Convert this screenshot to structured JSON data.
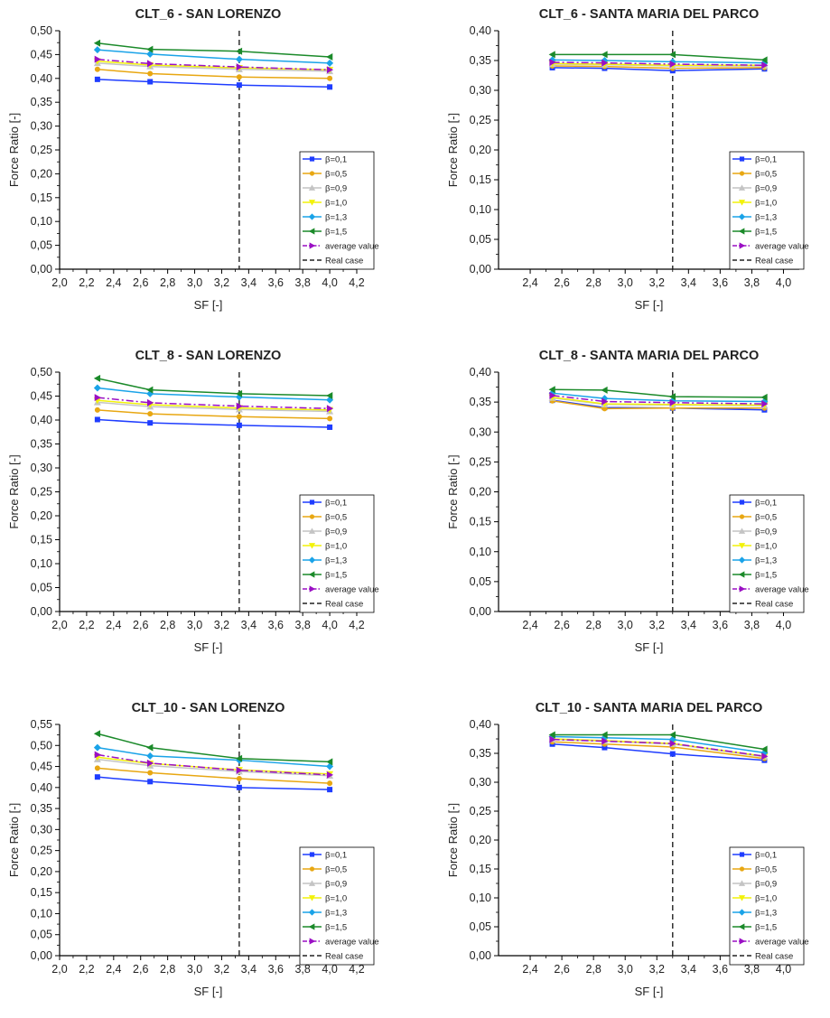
{
  "chart_data": [
    {
      "type": "line",
      "title": "CLT_6 - SAN LORENZO",
      "xlabel": "SF [-]",
      "ylabel": "Force Ratio [-]",
      "xlim": [
        2.0,
        4.2
      ],
      "ylim": [
        0.0,
        0.5
      ],
      "xticks": [
        "2,0",
        "2,2",
        "2,4",
        "2,6",
        "2,8",
        "3,0",
        "3,2",
        "3,4",
        "3,6",
        "3,8",
        "4,0",
        "4,2"
      ],
      "yticks": [
        "0,00",
        "0,05",
        "0,10",
        "0,15",
        "0,20",
        "0,25",
        "0,30",
        "0,35",
        "0,40",
        "0,45",
        "0,50"
      ],
      "x": [
        2.28,
        2.67,
        3.33,
        4.0
      ],
      "series": [
        {
          "name": "β=0,1",
          "color": "#1f3dff",
          "marker": "square",
          "dash": "solid",
          "values": [
            0.398,
            0.393,
            0.386,
            0.382
          ]
        },
        {
          "name": "β=0,5",
          "color": "#e8a712",
          "marker": "circle",
          "dash": "solid",
          "values": [
            0.419,
            0.41,
            0.403,
            0.4
          ]
        },
        {
          "name": "β=0,9",
          "color": "#c4c4c4",
          "marker": "triangle-up",
          "dash": "solid",
          "values": [
            0.432,
            0.425,
            0.419,
            0.415
          ]
        },
        {
          "name": "β=1,0",
          "color": "#f2f20a",
          "marker": "triangle-down",
          "dash": "solid",
          "values": [
            0.436,
            0.428,
            0.422,
            0.418
          ]
        },
        {
          "name": "β=1,3",
          "color": "#1aa3e8",
          "marker": "diamond",
          "dash": "solid",
          "values": [
            0.46,
            0.451,
            0.44,
            0.432
          ]
        },
        {
          "name": "β=1,5",
          "color": "#1b8a2a",
          "marker": "triangle-left",
          "dash": "solid",
          "values": [
            0.474,
            0.461,
            0.457,
            0.445
          ]
        },
        {
          "name": "average value",
          "color": "#9a0fc4",
          "marker": "triangle-right",
          "dash": "dashdot",
          "values": [
            0.44,
            0.431,
            0.424,
            0.418
          ]
        }
      ],
      "real_case": {
        "name": "Real case",
        "x": 3.33
      }
    },
    {
      "type": "line",
      "title": "CLT_6 - SANTA MARIA DEL PARCO",
      "xlabel": "SF [-]",
      "ylabel": "Force Ratio [-]",
      "xlim": [
        2.2,
        4.1
      ],
      "ylim": [
        0.0,
        0.4
      ],
      "xticks": [
        "2,4",
        "2,6",
        "2,8",
        "3,0",
        "3,2",
        "3,4",
        "3,6",
        "3,8",
        "4,0"
      ],
      "yticks": [
        "0,00",
        "0,05",
        "0,10",
        "0,15",
        "0,20",
        "0,25",
        "0,30",
        "0,35",
        "0,40"
      ],
      "x": [
        2.54,
        2.87,
        3.3,
        3.88
      ],
      "series": [
        {
          "name": "β=0,1",
          "color": "#1f3dff",
          "marker": "square",
          "dash": "solid",
          "values": [
            0.338,
            0.337,
            0.333,
            0.336
          ]
        },
        {
          "name": "β=0,5",
          "color": "#e8a712",
          "marker": "circle",
          "dash": "solid",
          "values": [
            0.341,
            0.34,
            0.337,
            0.338
          ]
        },
        {
          "name": "β=0,9",
          "color": "#c4c4c4",
          "marker": "triangle-up",
          "dash": "solid",
          "values": [
            0.344,
            0.343,
            0.341,
            0.341
          ]
        },
        {
          "name": "β=1,0",
          "color": "#f2f20a",
          "marker": "triangle-down",
          "dash": "solid",
          "values": [
            0.345,
            0.344,
            0.342,
            0.342
          ]
        },
        {
          "name": "β=1,3",
          "color": "#1aa3e8",
          "marker": "diamond",
          "dash": "solid",
          "values": [
            0.351,
            0.35,
            0.348,
            0.346
          ]
        },
        {
          "name": "β=1,5",
          "color": "#1b8a2a",
          "marker": "triangle-left",
          "dash": "solid",
          "values": [
            0.36,
            0.36,
            0.36,
            0.351
          ]
        },
        {
          "name": "average value",
          "color": "#9a0fc4",
          "marker": "triangle-right",
          "dash": "dashdot",
          "values": [
            0.347,
            0.346,
            0.344,
            0.342
          ]
        }
      ],
      "real_case": {
        "name": "Real case",
        "x": 3.3
      }
    },
    {
      "type": "line",
      "title": "CLT_8 - SAN LORENZO",
      "xlabel": "SF [-]",
      "ylabel": "Force Ratio [-]",
      "xlim": [
        2.0,
        4.2
      ],
      "ylim": [
        0.0,
        0.5
      ],
      "xticks": [
        "2,0",
        "2,2",
        "2,4",
        "2,6",
        "2,8",
        "3,0",
        "3,2",
        "3,4",
        "3,6",
        "3,8",
        "4,0",
        "4,2"
      ],
      "yticks": [
        "0,00",
        "0,05",
        "0,10",
        "0,15",
        "0,20",
        "0,25",
        "0,30",
        "0,35",
        "0,40",
        "0,45",
        "0,50"
      ],
      "x": [
        2.28,
        2.67,
        3.33,
        4.0
      ],
      "series": [
        {
          "name": "β=0,1",
          "color": "#1f3dff",
          "marker": "square",
          "dash": "solid",
          "values": [
            0.401,
            0.394,
            0.389,
            0.385
          ]
        },
        {
          "name": "β=0,5",
          "color": "#e8a712",
          "marker": "circle",
          "dash": "solid",
          "values": [
            0.421,
            0.413,
            0.407,
            0.403
          ]
        },
        {
          "name": "β=0,9",
          "color": "#c4c4c4",
          "marker": "triangle-up",
          "dash": "solid",
          "values": [
            0.437,
            0.428,
            0.422,
            0.418
          ]
        },
        {
          "name": "β=1,0",
          "color": "#f2f20a",
          "marker": "triangle-down",
          "dash": "solid",
          "values": [
            0.441,
            0.432,
            0.425,
            0.421
          ]
        },
        {
          "name": "β=1,3",
          "color": "#1aa3e8",
          "marker": "diamond",
          "dash": "solid",
          "values": [
            0.467,
            0.455,
            0.448,
            0.442
          ]
        },
        {
          "name": "β=1,5",
          "color": "#1b8a2a",
          "marker": "triangle-left",
          "dash": "solid",
          "values": [
            0.487,
            0.463,
            0.455,
            0.451
          ]
        },
        {
          "name": "average value",
          "color": "#9a0fc4",
          "marker": "triangle-right",
          "dash": "dashdot",
          "values": [
            0.447,
            0.436,
            0.429,
            0.424
          ]
        }
      ],
      "real_case": {
        "name": "Real case",
        "x": 3.33
      }
    },
    {
      "type": "line",
      "title": "CLT_8 - SANTA MARIA DEL PARCO",
      "xlabel": "SF [-]",
      "ylabel": "Force Ratio [-]",
      "xlim": [
        2.2,
        4.1
      ],
      "ylim": [
        0.0,
        0.4
      ],
      "xticks": [
        "2,4",
        "2,6",
        "2,8",
        "3,0",
        "3,2",
        "3,4",
        "3,6",
        "3,8",
        "4,0"
      ],
      "yticks": [
        "0,00",
        "0,05",
        "0,10",
        "0,15",
        "0,20",
        "0,25",
        "0,30",
        "0,35",
        "0,40"
      ],
      "x": [
        2.54,
        2.87,
        3.3,
        3.88
      ],
      "series": [
        {
          "name": "β=0,1",
          "color": "#1f3dff",
          "marker": "square",
          "dash": "solid",
          "values": [
            0.353,
            0.341,
            0.34,
            0.337
          ]
        },
        {
          "name": "β=0,5",
          "color": "#e8a712",
          "marker": "circle",
          "dash": "solid",
          "values": [
            0.352,
            0.339,
            0.34,
            0.34
          ]
        },
        {
          "name": "β=0,9",
          "color": "#c4c4c4",
          "marker": "triangle-up",
          "dash": "solid",
          "values": [
            0.357,
            0.346,
            0.345,
            0.344
          ]
        },
        {
          "name": "β=1,0",
          "color": "#f2f20a",
          "marker": "triangle-down",
          "dash": "solid",
          "values": [
            0.358,
            0.347,
            0.346,
            0.345
          ]
        },
        {
          "name": "β=1,3",
          "color": "#1aa3e8",
          "marker": "diamond",
          "dash": "solid",
          "values": [
            0.365,
            0.356,
            0.352,
            0.351
          ]
        },
        {
          "name": "β=1,5",
          "color": "#1b8a2a",
          "marker": "triangle-left",
          "dash": "solid",
          "values": [
            0.371,
            0.37,
            0.359,
            0.358
          ]
        },
        {
          "name": "average value",
          "color": "#9a0fc4",
          "marker": "triangle-right",
          "dash": "dashdot",
          "values": [
            0.361,
            0.351,
            0.349,
            0.347
          ]
        }
      ],
      "real_case": {
        "name": "Real case",
        "x": 3.3
      }
    },
    {
      "type": "line",
      "title": "CLT_10 - SAN LORENZO",
      "xlabel": "SF [-]",
      "ylabel": "Force Ratio [-]",
      "xlim": [
        2.0,
        4.2
      ],
      "ylim": [
        0.0,
        0.55
      ],
      "xticks": [
        "2,0",
        "2,2",
        "2,4",
        "2,6",
        "2,8",
        "3,0",
        "3,2",
        "3,4",
        "3,6",
        "3,8",
        "4,0",
        "4,2"
      ],
      "yticks": [
        "0,00",
        "0,05",
        "0,10",
        "0,15",
        "0,20",
        "0,25",
        "0,30",
        "0,35",
        "0,40",
        "0,45",
        "0,50",
        "0,55"
      ],
      "x": [
        2.28,
        2.67,
        3.33,
        4.0
      ],
      "series": [
        {
          "name": "β=0,1",
          "color": "#1f3dff",
          "marker": "square",
          "dash": "solid",
          "values": [
            0.425,
            0.414,
            0.4,
            0.395
          ]
        },
        {
          "name": "β=0,5",
          "color": "#e8a712",
          "marker": "circle",
          "dash": "solid",
          "values": [
            0.446,
            0.435,
            0.421,
            0.41
          ]
        },
        {
          "name": "β=0,9",
          "color": "#c4c4c4",
          "marker": "triangle-up",
          "dash": "solid",
          "values": [
            0.467,
            0.452,
            0.438,
            0.428
          ]
        },
        {
          "name": "β=1,0",
          "color": "#f2f20a",
          "marker": "triangle-down",
          "dash": "solid",
          "values": [
            0.472,
            0.457,
            0.442,
            0.432
          ]
        },
        {
          "name": "β=1,3",
          "color": "#1aa3e8",
          "marker": "diamond",
          "dash": "solid",
          "values": [
            0.495,
            0.475,
            0.465,
            0.45
          ]
        },
        {
          "name": "β=1,5",
          "color": "#1b8a2a",
          "marker": "triangle-left",
          "dash": "solid",
          "values": [
            0.528,
            0.495,
            0.469,
            0.461
          ]
        },
        {
          "name": "average value",
          "color": "#9a0fc4",
          "marker": "triangle-right",
          "dash": "dashdot",
          "values": [
            0.478,
            0.458,
            0.441,
            0.43
          ]
        }
      ],
      "real_case": {
        "name": "Real case",
        "x": 3.33
      }
    },
    {
      "type": "line",
      "title": "CLT_10 - SANTA MARIA DEL PARCO",
      "xlabel": "SF [-]",
      "ylabel": "Force Ratio [-]",
      "xlim": [
        2.2,
        4.1
      ],
      "ylim": [
        0.0,
        0.4
      ],
      "xticks": [
        "2,4",
        "2,6",
        "2,8",
        "3,0",
        "3,2",
        "3,4",
        "3,6",
        "3,8",
        "4,0"
      ],
      "yticks": [
        "0,00",
        "0,05",
        "0,10",
        "0,15",
        "0,20",
        "0,25",
        "0,30",
        "0,35",
        "0,40"
      ],
      "x": [
        2.54,
        2.87,
        3.3,
        3.88
      ],
      "series": [
        {
          "name": "β=0,1",
          "color": "#1f3dff",
          "marker": "square",
          "dash": "solid",
          "values": [
            0.366,
            0.36,
            0.349,
            0.338
          ]
        },
        {
          "name": "β=0,5",
          "color": "#e8a712",
          "marker": "circle",
          "dash": "solid",
          "values": [
            0.37,
            0.366,
            0.361,
            0.341
          ]
        },
        {
          "name": "β=0,9",
          "color": "#c4c4c4",
          "marker": "triangle-up",
          "dash": "solid",
          "values": [
            0.374,
            0.371,
            0.366,
            0.344
          ]
        },
        {
          "name": "β=1,0",
          "color": "#f2f20a",
          "marker": "triangle-down",
          "dash": "solid",
          "values": [
            0.375,
            0.372,
            0.367,
            0.345
          ]
        },
        {
          "name": "β=1,3",
          "color": "#1aa3e8",
          "marker": "diamond",
          "dash": "solid",
          "values": [
            0.379,
            0.377,
            0.374,
            0.351
          ]
        },
        {
          "name": "β=1,5",
          "color": "#1b8a2a",
          "marker": "triangle-left",
          "dash": "solid",
          "values": [
            0.382,
            0.382,
            0.382,
            0.357
          ]
        },
        {
          "name": "average value",
          "color": "#9a0fc4",
          "marker": "triangle-right",
          "dash": "dashdot",
          "values": [
            0.374,
            0.371,
            0.367,
            0.345
          ]
        }
      ],
      "real_case": {
        "name": "Real case",
        "x": 3.3
      }
    }
  ]
}
